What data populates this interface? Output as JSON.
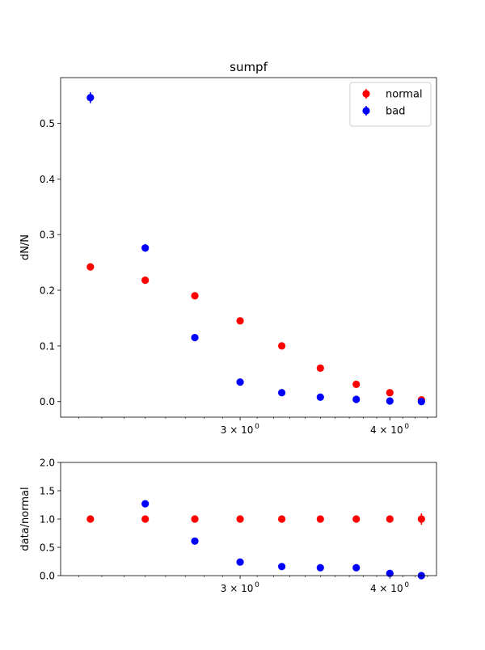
{
  "chart_data": [
    {
      "type": "scatter",
      "title": "sumpf",
      "ylabel": "dN/N",
      "xlabel": "",
      "x_scale": "log",
      "x": [
        2.25,
        2.5,
        2.75,
        3.0,
        3.25,
        3.5,
        3.75,
        4.0,
        4.25
      ],
      "xlim": [
        2.125,
        4.375
      ],
      "ylim": [
        -0.028,
        0.582
      ],
      "x_major_ticks": [
        3,
        4
      ],
      "x_tick_labels": [
        "3 × 10",
        "4 × 10"
      ],
      "x_tick_exponent": "0",
      "y_ticks": [
        0.0,
        0.1,
        0.2,
        0.3,
        0.4,
        0.5
      ],
      "y_tick_labels": [
        "0.0",
        "0.1",
        "0.2",
        "0.3",
        "0.4",
        "0.5"
      ],
      "legend": "top-right",
      "series": [
        {
          "name": "normal",
          "color": "#ff0000",
          "values": [
            0.242,
            0.218,
            0.19,
            0.145,
            0.1,
            0.06,
            0.031,
            0.016,
            0.003
          ],
          "errors": [
            0.004,
            0.004,
            0.004,
            0.003,
            0.003,
            0.002,
            0.002,
            0.001,
            0.001
          ]
        },
        {
          "name": "bad",
          "color": "#0000ff",
          "values": [
            0.546,
            0.276,
            0.115,
            0.035,
            0.016,
            0.008,
            0.004,
            0.001,
            0.0
          ],
          "errors": [
            0.01,
            0.007,
            0.004,
            0.002,
            0.001,
            0.001,
            0.001,
            0.001,
            0.0
          ]
        }
      ]
    },
    {
      "type": "scatter",
      "ylabel": "data/normal",
      "xlabel": "",
      "x_scale": "log",
      "x": [
        2.25,
        2.5,
        2.75,
        3.0,
        3.25,
        3.5,
        3.75,
        4.0,
        4.25
      ],
      "xlim": [
        2.125,
        4.375
      ],
      "ylim": [
        0.0,
        2.0
      ],
      "x_major_ticks": [
        3,
        4
      ],
      "x_tick_labels": [
        "3 × 10",
        "4 × 10"
      ],
      "x_tick_exponent": "0",
      "y_ticks": [
        0.0,
        0.5,
        1.0,
        1.5,
        2.0
      ],
      "y_tick_labels": [
        "0.0",
        "0.5",
        "1.0",
        "1.5",
        "2.0"
      ],
      "series": [
        {
          "name": "normal",
          "color": "#ff0000",
          "values": [
            1.0,
            1.0,
            1.0,
            1.0,
            1.0,
            1.0,
            1.0,
            1.0,
            1.0
          ],
          "errors": [
            0.0,
            0.0,
            0.0,
            0.0,
            0.0,
            0.0,
            0.0,
            0.0,
            0.1
          ]
        },
        {
          "name": "bad",
          "color": "#0000ff",
          "values": [
            null,
            1.27,
            0.61,
            0.24,
            0.16,
            0.14,
            0.14,
            0.04,
            0.0
          ],
          "errors": [
            0,
            0,
            0,
            0,
            0,
            0,
            0,
            0,
            0
          ]
        }
      ]
    }
  ]
}
